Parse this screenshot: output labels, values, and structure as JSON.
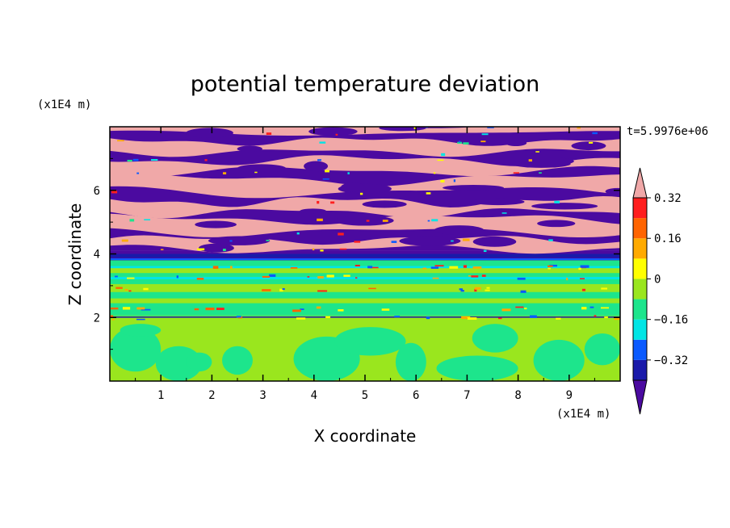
{
  "chart_data": {
    "type": "heatmap",
    "title": "potential temperature deviation",
    "xlabel": "X coordinate",
    "ylabel": "Z coordinate",
    "x_unit": "(x1E4 m)",
    "y_unit": "(x1E4 m)",
    "time_label": "t=5.9976e+06",
    "xlim": [
      0,
      10
    ],
    "ylim": [
      0,
      8
    ],
    "x_ticks": [
      "1",
      "2",
      "3",
      "4",
      "5",
      "6",
      "7",
      "8",
      "9"
    ],
    "y_ticks": [
      "2",
      "4",
      "6"
    ],
    "colorbar": {
      "levels": [
        -0.48,
        -0.4,
        -0.32,
        -0.24,
        -0.16,
        -0.08,
        0,
        0.08,
        0.16,
        0.24,
        0.32,
        0.4,
        0.48
      ],
      "labels": [
        "0.32",
        "0.16",
        "0",
        "−0.16",
        "−0.32"
      ],
      "label_values": [
        0.32,
        0.16,
        0,
        -0.16,
        -0.32
      ],
      "colors": [
        "#4b0aa0",
        "#1a1aaa",
        "#0a5aff",
        "#00e5e5",
        "#1de58c",
        "#9ae61e",
        "#ffff00",
        "#ffaa00",
        "#ff6400",
        "#ff1e1e",
        "#f0a8a8"
      ],
      "extend": "both"
    },
    "layers": [
      {
        "z_from": 0.0,
        "z_to": 2.0,
        "dominant": [
          0.02,
          -0.06
        ],
        "note_colors": [
          "#9ae61e",
          "#1de58c"
        ]
      },
      {
        "z_from": 2.0,
        "z_to": 3.8,
        "dominant": [
          0.02,
          -0.06
        ],
        "note_colors": [
          "#9ae61e",
          "#1de58c",
          "#00e5e5"
        ]
      },
      {
        "z_from": 3.8,
        "z_to": 4.1,
        "dominant": [
          -0.4,
          -0.3
        ],
        "note_colors": [
          "#4b0aa0",
          "#1a1aaa"
        ]
      },
      {
        "z_from": 4.1,
        "z_to": 8.0,
        "dominant": [
          0.5,
          -0.5
        ],
        "note_colors": [
          "#f0a8a8",
          "#5c0aa8"
        ]
      }
    ]
  }
}
